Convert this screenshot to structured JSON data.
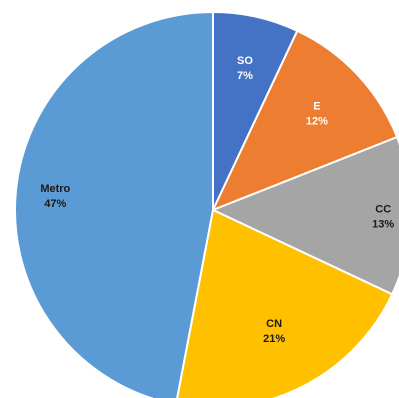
{
  "chart_data": {
    "type": "pie",
    "slices": [
      {
        "label": "SO",
        "value": 7,
        "value_label": "7%",
        "color": "#4472C4",
        "text_color": "#ffffff"
      },
      {
        "label": "E",
        "value": 12,
        "value_label": "12%",
        "color": "#ED7D31",
        "text_color": "#ffffff"
      },
      {
        "label": "CC",
        "value": 13,
        "value_label": "13%",
        "color": "#A5A5A5",
        "text_color": "#1a1a1a"
      },
      {
        "label": "CN",
        "value": 21,
        "value_label": "21%",
        "color": "#FFC000",
        "text_color": "#1a1a1a"
      },
      {
        "label": "Metro",
        "value": 47,
        "value_label": "47%",
        "color": "#5B9BD5",
        "text_color": "#1a1a1a"
      }
    ],
    "start_angle": "12 o'clock",
    "direction": "clockwise",
    "legend": "none"
  }
}
